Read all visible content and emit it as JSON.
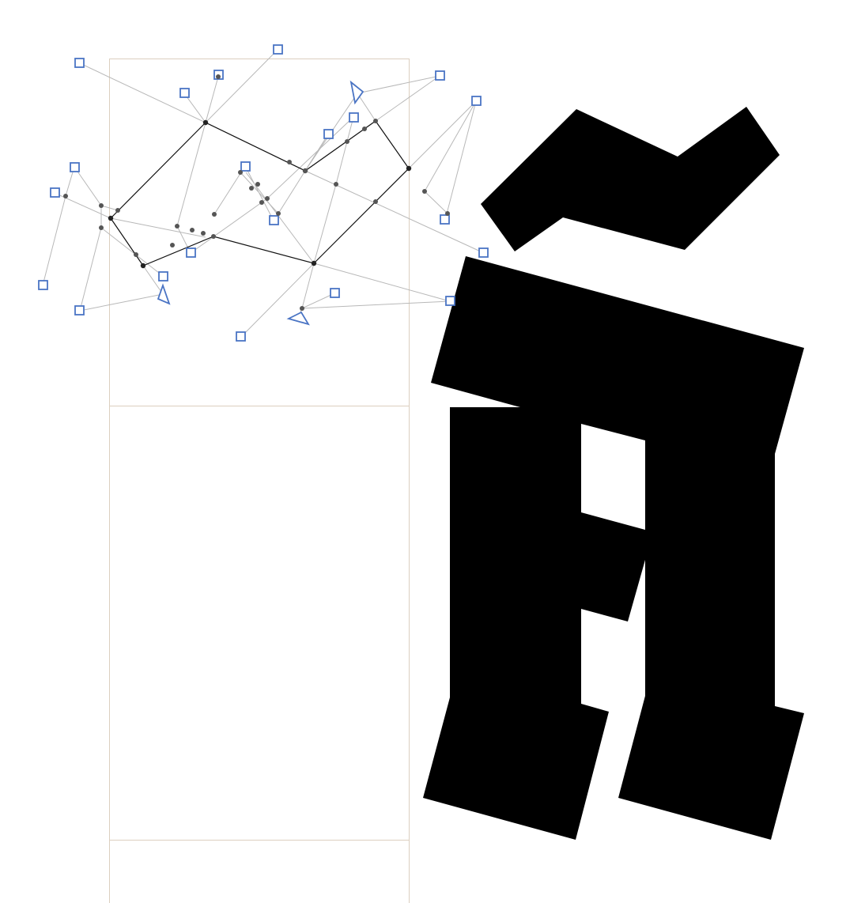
{
  "canvas": {
    "background": "#ffffff",
    "glyph_color": "#000000",
    "guide_color": "#dccfbf",
    "handle_color": "#4a74c4",
    "edge_color": "#b8b8b8",
    "node_color": "#555555"
  },
  "glyph": {
    "name": "n-tilde-glyph",
    "character": "ñ"
  },
  "handles": {
    "count": 22,
    "shape": "square",
    "marker_shape": "triangle"
  }
}
